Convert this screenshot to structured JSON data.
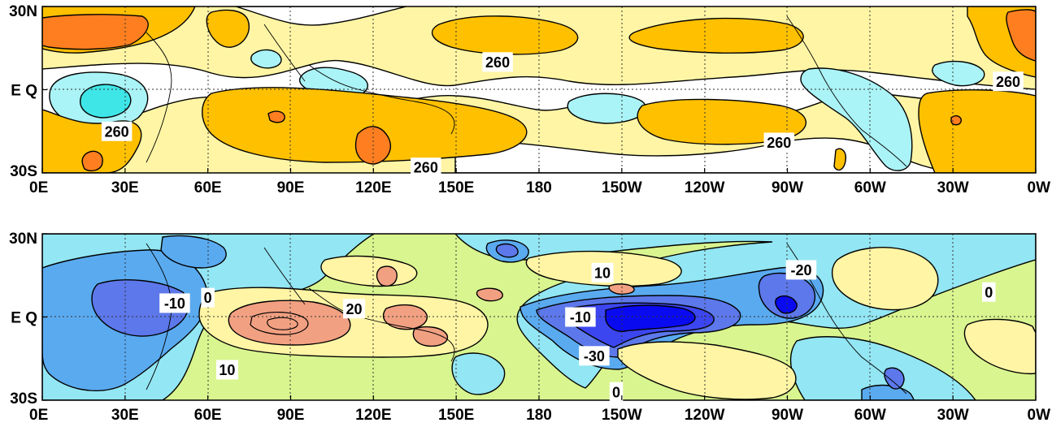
{
  "chart_data": [
    {
      "type": "heatmap",
      "title": "",
      "xlabel": "",
      "ylabel": "",
      "x_ticks": [
        "0E",
        "30E",
        "60E",
        "90E",
        "120E",
        "150E",
        "180",
        "150W",
        "120W",
        "90W",
        "60W",
        "30W",
        "0W"
      ],
      "y_ticks": [
        "30N",
        "E Q",
        "30S"
      ],
      "grid": "dotted",
      "contour_labels": [
        {
          "text": "260",
          "lon": 165,
          "lat": 10
        },
        {
          "text": "260",
          "lon": 350,
          "lat": 3
        },
        {
          "text": "260",
          "lon": 27,
          "lat": -15
        },
        {
          "text": "260",
          "lon": 139,
          "lat": -28
        },
        {
          "text": "260",
          "lon": 267,
          "lat": -19
        }
      ],
      "color_levels": [
        {
          "range": "< 230",
          "color": "#3ee6e8"
        },
        {
          "range": "230-250",
          "color": "#aaf3f6"
        },
        {
          "range": "250-260",
          "color": "#ffffff"
        },
        {
          "range": "260-270",
          "color": "#fff5a5"
        },
        {
          "range": "270-280",
          "color": "#ffc000"
        },
        {
          "range": "280-290",
          "color": "#ff7f20"
        },
        {
          "range": "> 290",
          "color": "#ff5a00"
        }
      ]
    },
    {
      "type": "heatmap",
      "title": "",
      "xlabel": "",
      "ylabel": "",
      "x_ticks": [
        "0E",
        "30E",
        "60E",
        "90E",
        "120E",
        "150E",
        "180",
        "150W",
        "120W",
        "90W",
        "60W",
        "30W",
        "0W"
      ],
      "y_ticks": [
        "30N",
        "E Q",
        "30S"
      ],
      "grid": "dotted",
      "contour_labels": [
        {
          "text": "-10",
          "lon": 48,
          "lat": 5
        },
        {
          "text": "0",
          "lon": 60,
          "lat": 7
        },
        {
          "text": "20",
          "lon": 113,
          "lat": 3
        },
        {
          "text": "10",
          "lon": 67,
          "lat": -19
        },
        {
          "text": "10",
          "lon": 203,
          "lat": 16
        },
        {
          "text": "-10",
          "lon": 195,
          "lat": 0
        },
        {
          "text": "-30",
          "lon": 200,
          "lat": -14
        },
        {
          "text": "0",
          "lon": 208,
          "lat": -27
        },
        {
          "text": "-20",
          "lon": 275,
          "lat": 17
        },
        {
          "text": "0",
          "lon": 343,
          "lat": 9
        }
      ],
      "color_levels": [
        {
          "range": "< -40",
          "color": "#0a0af0"
        },
        {
          "range": "-40 to -30",
          "color": "#3c46f0"
        },
        {
          "range": "-30 to -20",
          "color": "#5c78ea"
        },
        {
          "range": "-20 to -10",
          "color": "#5aaaf0"
        },
        {
          "range": "-10 to 0",
          "color": "#93e6f3"
        },
        {
          "range": "0 to 10",
          "color": "#d9f58f"
        },
        {
          "range": "10 to 20",
          "color": "#fff5a5"
        },
        {
          "range": "> 20",
          "color": "#f2a082"
        }
      ]
    }
  ]
}
